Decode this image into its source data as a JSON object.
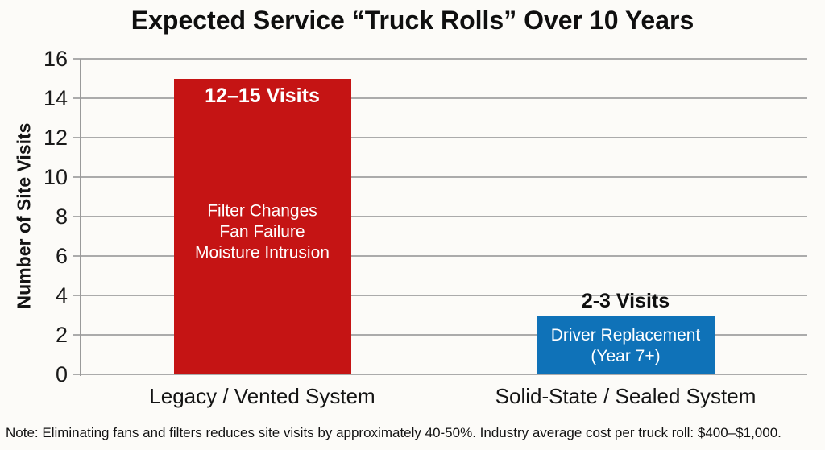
{
  "title": "Expected Service “Truck Rolls” Over 10 Years",
  "note": "Note: Eliminating fans and filters reduces site visits by approximately 40-50%. Industry average cost per truck roll: $400–$1,000.",
  "chart_data": {
    "type": "bar",
    "title": "Expected Service “Truck Rolls” Over 10 Years",
    "xlabel": "",
    "ylabel": "Number of Site Visits",
    "ylim": [
      0,
      16
    ],
    "ytick_step": 2,
    "ytick_labels": [
      "0",
      "2",
      "4",
      "6",
      "8",
      "10",
      "12",
      "14",
      "16"
    ],
    "grid": true,
    "legend": "none",
    "categories": [
      "Legacy / Vented System",
      "Solid-State / Sealed System"
    ],
    "values": [
      15,
      3
    ],
    "bars": [
      {
        "category": "Legacy / Vented System",
        "value": 15,
        "range_label": "12–15 Visits",
        "range_label_position": "inside-top",
        "detail_lines": [
          "Filter Changes",
          "Fan Failure",
          "Moisture Intrusion"
        ],
        "color": "#c51414"
      },
      {
        "category": "Solid-State / Sealed System",
        "value": 3,
        "range_label": "2-3 Visits",
        "range_label_position": "above",
        "detail_lines": [
          "Driver Replacement",
          "(Year 7+)"
        ],
        "color": "#0f72b8"
      }
    ],
    "colors": {
      "bar_legacy": "#c51414",
      "bar_solid_state": "#0f72b8",
      "grid": "#ababab",
      "axis": "#9a9a9a",
      "text": "#111111",
      "background": "#fcfbf8"
    }
  }
}
